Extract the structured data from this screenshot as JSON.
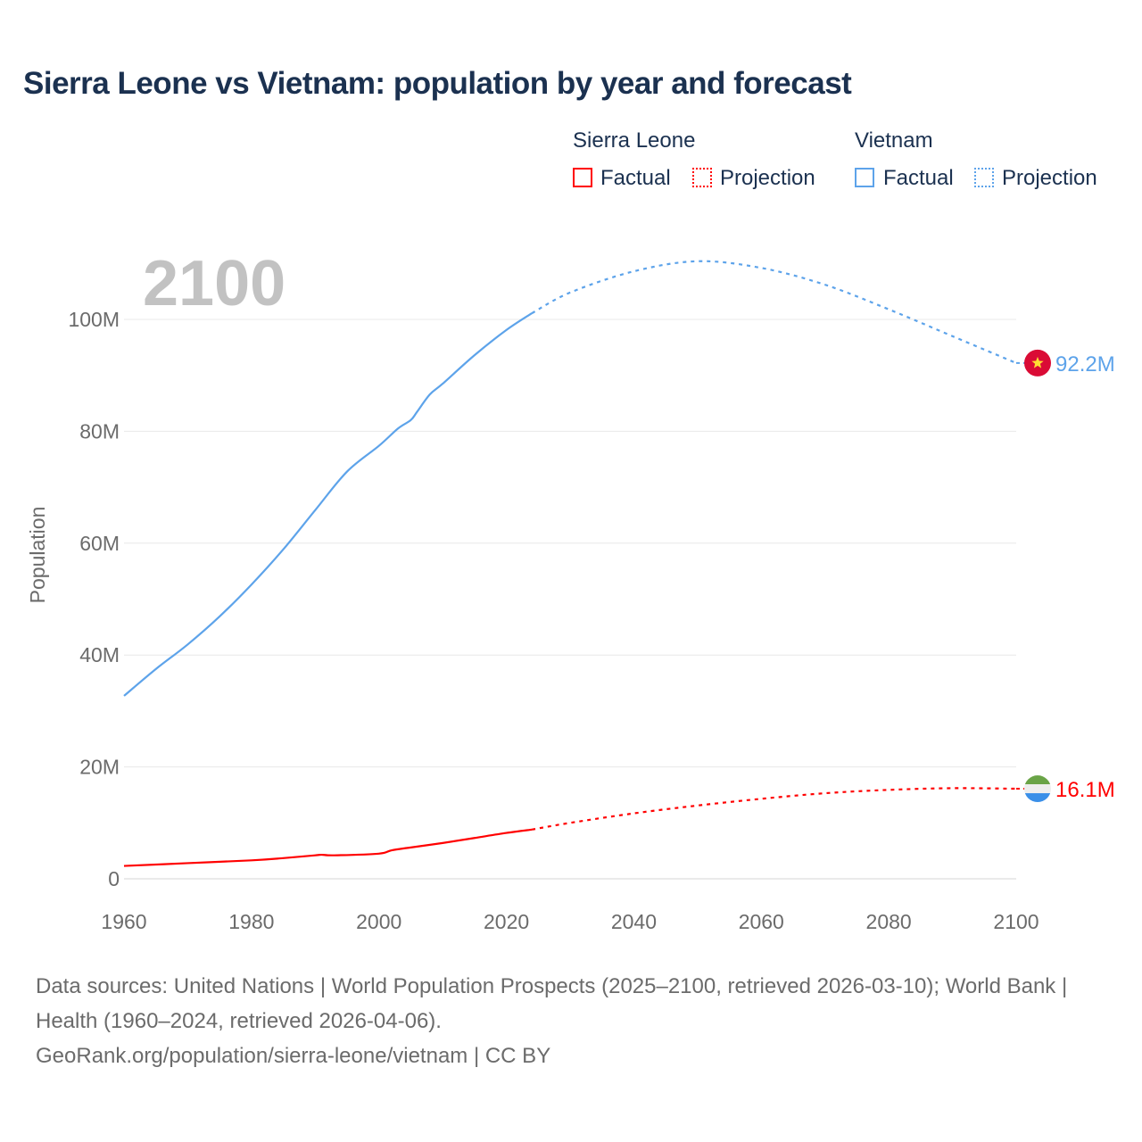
{
  "chart_data": {
    "type": "line",
    "title": "Sierra Leone vs Vietnam: population by year and forecast",
    "ylabel": "Population",
    "xlabel": "",
    "xlim": [
      1960,
      2100
    ],
    "ylim": [
      0,
      110000000
    ],
    "x_ticks": [
      "1960",
      "1980",
      "2000",
      "2020",
      "2040",
      "2060",
      "2080",
      "2100"
    ],
    "y_ticks": [
      {
        "v": 0,
        "label": "0"
      },
      {
        "v": 20,
        "label": "20M"
      },
      {
        "v": 40,
        "label": "40M"
      },
      {
        "v": 60,
        "label": "60M"
      },
      {
        "v": 80,
        "label": "80M"
      },
      {
        "v": 100,
        "label": "100M"
      }
    ],
    "year_overlay": "2100",
    "grid": true,
    "legend_position": "top-right",
    "legend": {
      "groups": [
        {
          "country": "Sierra Leone",
          "factual": "Factual",
          "projection": "Projection"
        },
        {
          "country": "Vietnam",
          "factual": "Factual",
          "projection": "Projection"
        }
      ]
    },
    "series": [
      {
        "name": "Vietnam",
        "color": "#5da3ea",
        "end_label": "92.2M",
        "flag": "vietnam-flag",
        "factual": {
          "x": [
            1960,
            1965,
            1970,
            1975,
            1980,
            1985,
            1990,
            1995,
            2000,
            2003,
            2005,
            2006,
            2008,
            2010,
            2015,
            2020,
            2024
          ],
          "y": [
            32.7,
            37.5,
            41.9,
            46.9,
            52.6,
            58.9,
            65.9,
            72.8,
            77.4,
            80.5,
            82.0,
            83.5,
            86.6,
            88.5,
            93.6,
            98.1,
            101.1
          ]
        },
        "projection": {
          "x": [
            2024,
            2030,
            2040,
            2050,
            2060,
            2070,
            2080,
            2090,
            2100
          ],
          "y": [
            101.1,
            104.8,
            108.6,
            110.4,
            109.2,
            106.2,
            101.8,
            97.0,
            92.2
          ]
        }
      },
      {
        "name": "Sierra Leone",
        "color": "#ff0000",
        "end_label": "16.1M",
        "flag": "sierra-leone-flag",
        "factual": {
          "x": [
            1960,
            1970,
            1980,
            1985,
            1990,
            1991,
            1993,
            2000,
            2002,
            2005,
            2010,
            2015,
            2020,
            2024
          ],
          "y": [
            2.3,
            2.8,
            3.3,
            3.7,
            4.2,
            4.3,
            4.2,
            4.5,
            5.1,
            5.6,
            6.4,
            7.3,
            8.2,
            8.8
          ]
        },
        "projection": {
          "x": [
            2024,
            2030,
            2040,
            2050,
            2060,
            2070,
            2080,
            2090,
            2100
          ],
          "y": [
            8.8,
            10.0,
            11.7,
            13.1,
            14.3,
            15.3,
            15.9,
            16.2,
            16.1
          ]
        }
      }
    ]
  },
  "source": {
    "line1": "Data sources: United Nations | World Population Prospects (2025–2100, retrieved 2026-03-10); World Bank | Health (1960–2024, retrieved 2026-04-06).",
    "line2": "GeoRank.org/population/sierra-leone/vietnam | CC BY"
  }
}
